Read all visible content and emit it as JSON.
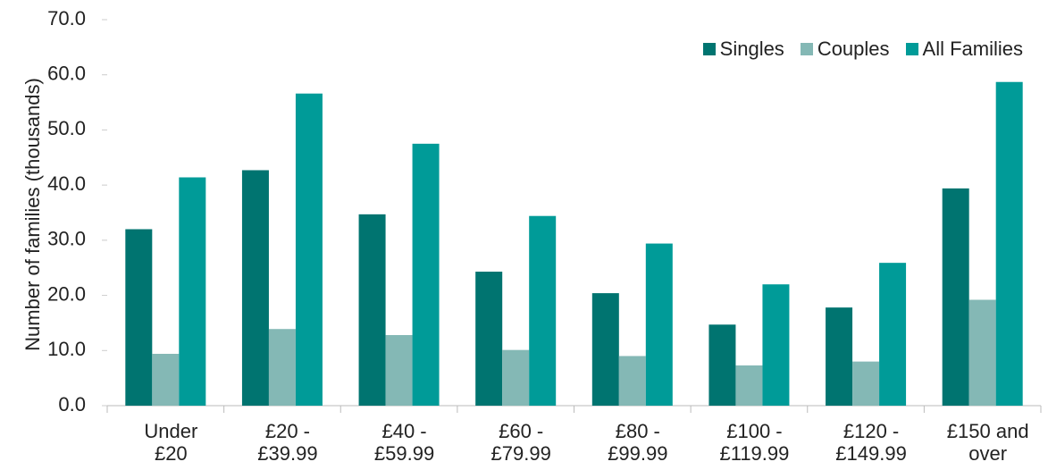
{
  "chart_data": {
    "type": "bar",
    "ylabel": "Number of families (thousands)",
    "categories": [
      "Under £20",
      "£20 - £39.99",
      "£40 - £59.99",
      "£60 - £79.99",
      "£80 - £99.99",
      "£100 - £119.99",
      "£120 - £149.99",
      "£150 and over"
    ],
    "series": [
      {
        "name": "Singles",
        "color": "#007470",
        "values": [
          32.0,
          42.7,
          34.7,
          24.3,
          20.4,
          14.7,
          17.8,
          39.4
        ]
      },
      {
        "name": "Couples",
        "color": "#84b8b5",
        "values": [
          9.4,
          13.9,
          12.8,
          10.1,
          9.0,
          7.3,
          8.0,
          19.2
        ]
      },
      {
        "name": "All Families",
        "color": "#009b98",
        "values": [
          41.4,
          56.6,
          47.5,
          34.4,
          29.4,
          22.0,
          25.9,
          58.7
        ]
      }
    ],
    "ylim": [
      0,
      70
    ],
    "yticks": [
      {
        "value": 0,
        "label": "0.0"
      },
      {
        "value": 10,
        "label": "10.0"
      },
      {
        "value": 20,
        "label": "20.0"
      },
      {
        "value": 30,
        "label": "30.0"
      },
      {
        "value": 40,
        "label": "40.0"
      },
      {
        "value": 50,
        "label": "50.0"
      },
      {
        "value": 60,
        "label": "60.0"
      },
      {
        "value": 70,
        "label": "70.0"
      }
    ],
    "legend": "top-right"
  }
}
